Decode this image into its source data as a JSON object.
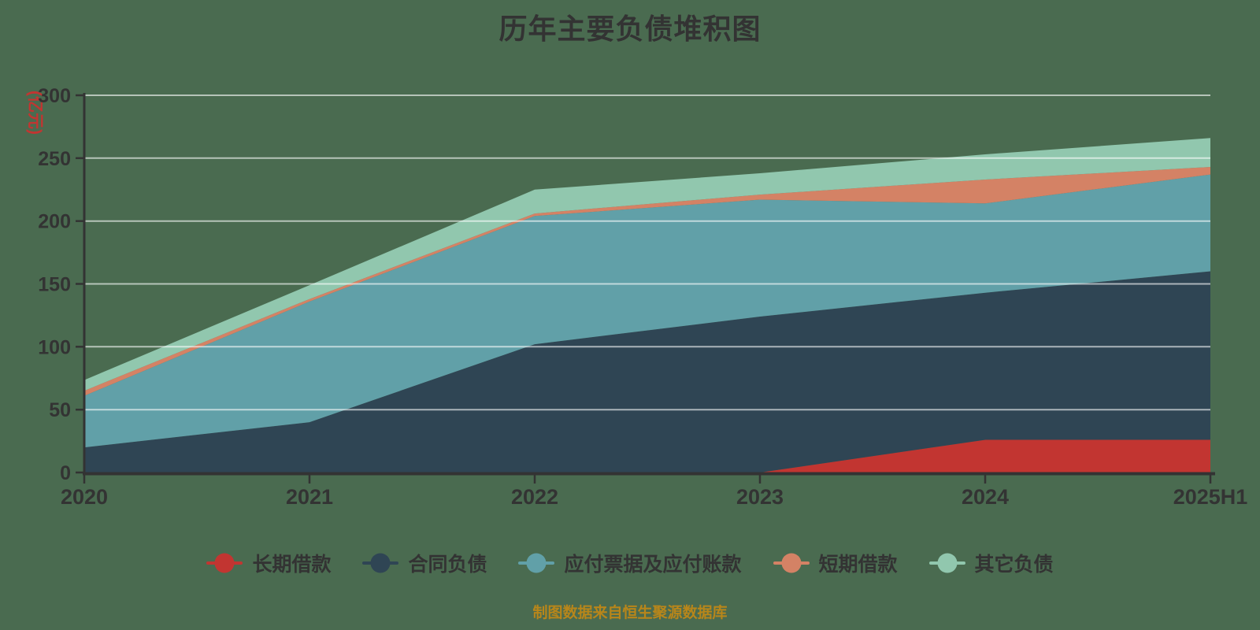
{
  "chart": {
    "title": "历年主要负债堆积图",
    "y_unit": "(亿元)",
    "source_note": "制图数据来自恒生聚源数据库"
  },
  "colors": {
    "background": "#4A6B50",
    "title": "#333333",
    "axis_label": "#333333",
    "axis_line": "#333333",
    "grid_line": "rgba(255,255,255,0.60)",
    "unit_label": "#C23531",
    "legend_label": "#333333",
    "source_note": "#B8861A"
  },
  "chart_data": {
    "type": "area",
    "stacked": true,
    "title": "历年主要负债堆积图",
    "ylabel": "(亿元)",
    "xlabel": "",
    "ylim": [
      0,
      300
    ],
    "y_ticks": [
      0,
      50,
      100,
      150,
      200,
      250,
      300
    ],
    "grid": true,
    "legend_position": "bottom",
    "categories": [
      "2020",
      "2021",
      "2022",
      "2023",
      "2024",
      "2025H1"
    ],
    "series": [
      {
        "name": "长期借款",
        "key": "long-term-loans",
        "color": "#C23531",
        "values": [
          0,
          0,
          0,
          0,
          26,
          26
        ]
      },
      {
        "name": "合同负债",
        "key": "contract-liabilities",
        "color": "#2F4554",
        "values": [
          20,
          40,
          102,
          124,
          117,
          134
        ]
      },
      {
        "name": "应付票据及应付账款",
        "key": "notes-and-accounts-payable",
        "color": "#61A0A8",
        "values": [
          41,
          96,
          102,
          93,
          71,
          77
        ]
      },
      {
        "name": "短期借款",
        "key": "short-term-loans",
        "color": "#D48265",
        "values": [
          4,
          2,
          2,
          4,
          19,
          6
        ]
      },
      {
        "name": "其它负债",
        "key": "other-liabilities",
        "color": "#91C7AE",
        "values": [
          8.5,
          11,
          19,
          17,
          20,
          23
        ]
      }
    ],
    "totals": [
      73.5,
      149,
      225,
      238,
      253,
      266
    ]
  }
}
